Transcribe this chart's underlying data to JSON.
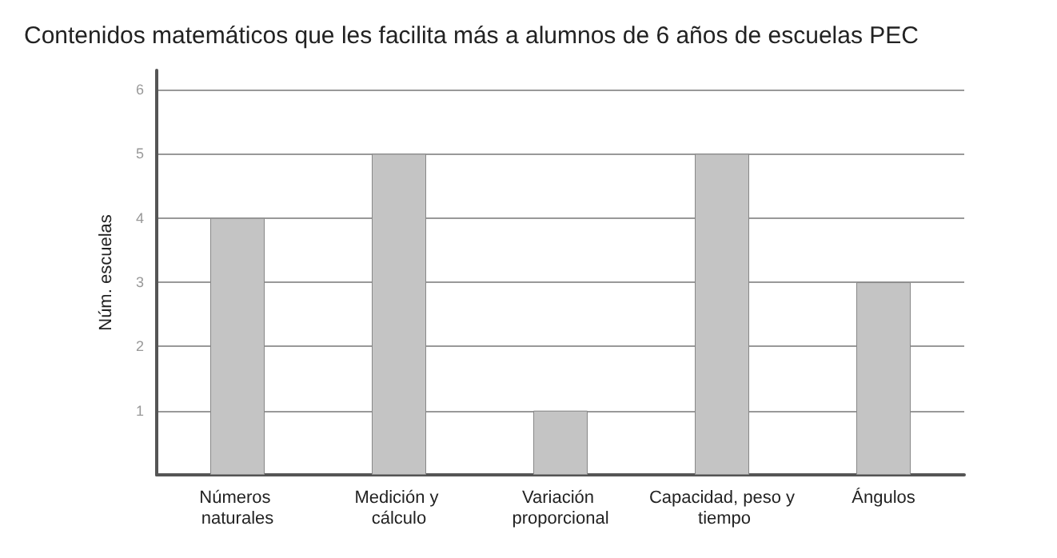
{
  "chart_data": {
    "type": "bar",
    "title": "Contenidos matemáticos que les facilita más a alumnos de 6 años de escuelas PEC",
    "ylabel": "Núm. escuelas",
    "categories": [
      "Números naturales",
      "Medición y cálculo",
      "Variación proporcional",
      "Capacidad, peso y tiempo",
      "Ángulos"
    ],
    "values": [
      4,
      5,
      1,
      5,
      3
    ],
    "color": "#c4c4c4",
    "ylim": [
      0,
      6.3
    ],
    "yticks": [
      {
        "value": 0,
        "label": null
      },
      1,
      2,
      3,
      4,
      5,
      6
    ],
    "grid": "y"
  }
}
